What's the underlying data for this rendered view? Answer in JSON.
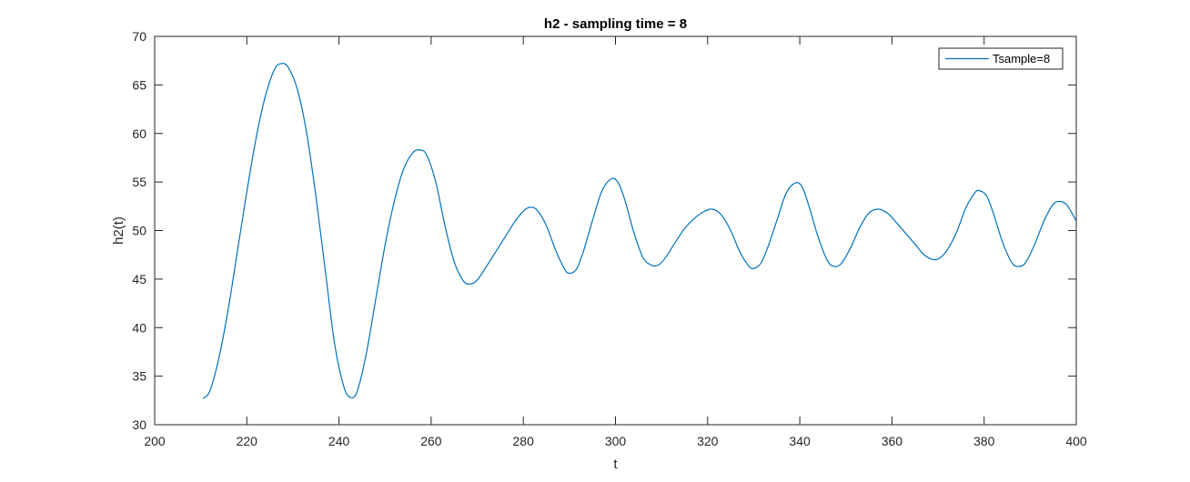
{
  "chart_data": {
    "type": "line",
    "title": "h2 - sampling time = 8",
    "xlabel": "t",
    "ylabel": "h2(t)",
    "xlim": [
      200,
      400
    ],
    "ylim": [
      30,
      70
    ],
    "xticks": [
      200,
      220,
      240,
      260,
      280,
      300,
      320,
      340,
      360,
      380,
      400
    ],
    "yticks": [
      30,
      35,
      40,
      45,
      50,
      55,
      60,
      65,
      70
    ],
    "grid": false,
    "legend_position": "top-right",
    "series": [
      {
        "name": "Tsample=8",
        "color": "#0072bd",
        "points": [
          [
            210.5,
            32.7
          ],
          [
            212,
            33.5
          ],
          [
            214,
            37.0
          ],
          [
            216,
            42.0
          ],
          [
            218,
            48.0
          ],
          [
            220,
            54.0
          ],
          [
            222,
            59.5
          ],
          [
            224,
            63.8
          ],
          [
            226,
            66.6
          ],
          [
            227.5,
            67.2
          ],
          [
            229,
            66.8
          ],
          [
            231,
            64.5
          ],
          [
            233,
            60.0
          ],
          [
            235,
            53.5
          ],
          [
            237,
            46.0
          ],
          [
            239,
            38.5
          ],
          [
            241,
            34.0
          ],
          [
            242.5,
            32.8
          ],
          [
            244,
            33.5
          ],
          [
            246,
            37.5
          ],
          [
            248,
            43.0
          ],
          [
            250,
            48.5
          ],
          [
            252,
            53.0
          ],
          [
            254,
            56.3
          ],
          [
            256,
            58.0
          ],
          [
            257.5,
            58.3
          ],
          [
            259,
            57.8
          ],
          [
            261,
            55.0
          ],
          [
            263,
            50.5
          ],
          [
            265,
            46.8
          ],
          [
            267,
            44.8
          ],
          [
            268.5,
            44.5
          ],
          [
            270,
            44.9
          ],
          [
            272,
            46.3
          ],
          [
            274,
            47.8
          ],
          [
            276,
            49.3
          ],
          [
            278,
            50.8
          ],
          [
            280,
            52.0
          ],
          [
            281.5,
            52.4
          ],
          [
            283,
            52.1
          ],
          [
            285,
            50.5
          ],
          [
            287,
            48.0
          ],
          [
            289,
            46.0
          ],
          [
            290,
            45.6
          ],
          [
            291.5,
            46.0
          ],
          [
            293,
            47.8
          ],
          [
            295,
            51.0
          ],
          [
            297,
            54.0
          ],
          [
            299,
            55.3
          ],
          [
            300.5,
            55.0
          ],
          [
            302,
            53.2
          ],
          [
            304,
            49.8
          ],
          [
            306,
            47.2
          ],
          [
            308,
            46.4
          ],
          [
            309.5,
            46.5
          ],
          [
            311,
            47.3
          ],
          [
            313,
            48.8
          ],
          [
            315,
            50.2
          ],
          [
            317,
            51.2
          ],
          [
            319,
            51.9
          ],
          [
            321,
            52.2
          ],
          [
            323,
            51.6
          ],
          [
            325,
            50.0
          ],
          [
            327,
            47.8
          ],
          [
            329,
            46.3
          ],
          [
            330,
            46.1
          ],
          [
            331.5,
            46.6
          ],
          [
            333,
            48.2
          ],
          [
            335,
            51.0
          ],
          [
            337,
            53.8
          ],
          [
            339,
            54.9
          ],
          [
            340.5,
            54.5
          ],
          [
            342,
            52.5
          ],
          [
            344,
            49.3
          ],
          [
            346,
            46.9
          ],
          [
            347.5,
            46.3
          ],
          [
            349,
            46.6
          ],
          [
            351,
            48.2
          ],
          [
            353,
            50.3
          ],
          [
            355,
            51.8
          ],
          [
            357,
            52.2
          ],
          [
            359,
            51.8
          ],
          [
            361,
            50.8
          ],
          [
            363,
            49.7
          ],
          [
            365,
            48.6
          ],
          [
            367,
            47.5
          ],
          [
            369,
            47.0
          ],
          [
            370.5,
            47.2
          ],
          [
            372,
            48.0
          ],
          [
            374,
            49.8
          ],
          [
            376,
            52.3
          ],
          [
            378,
            53.9
          ],
          [
            379,
            54.1
          ],
          [
            380.5,
            53.6
          ],
          [
            382,
            51.8
          ],
          [
            384,
            48.8
          ],
          [
            386,
            46.7
          ],
          [
            387.5,
            46.3
          ],
          [
            389,
            46.7
          ],
          [
            391,
            48.6
          ],
          [
            393,
            51.0
          ],
          [
            395,
            52.7
          ],
          [
            396.5,
            53.0
          ],
          [
            398,
            52.6
          ],
          [
            400,
            51.0
          ]
        ]
      }
    ]
  }
}
